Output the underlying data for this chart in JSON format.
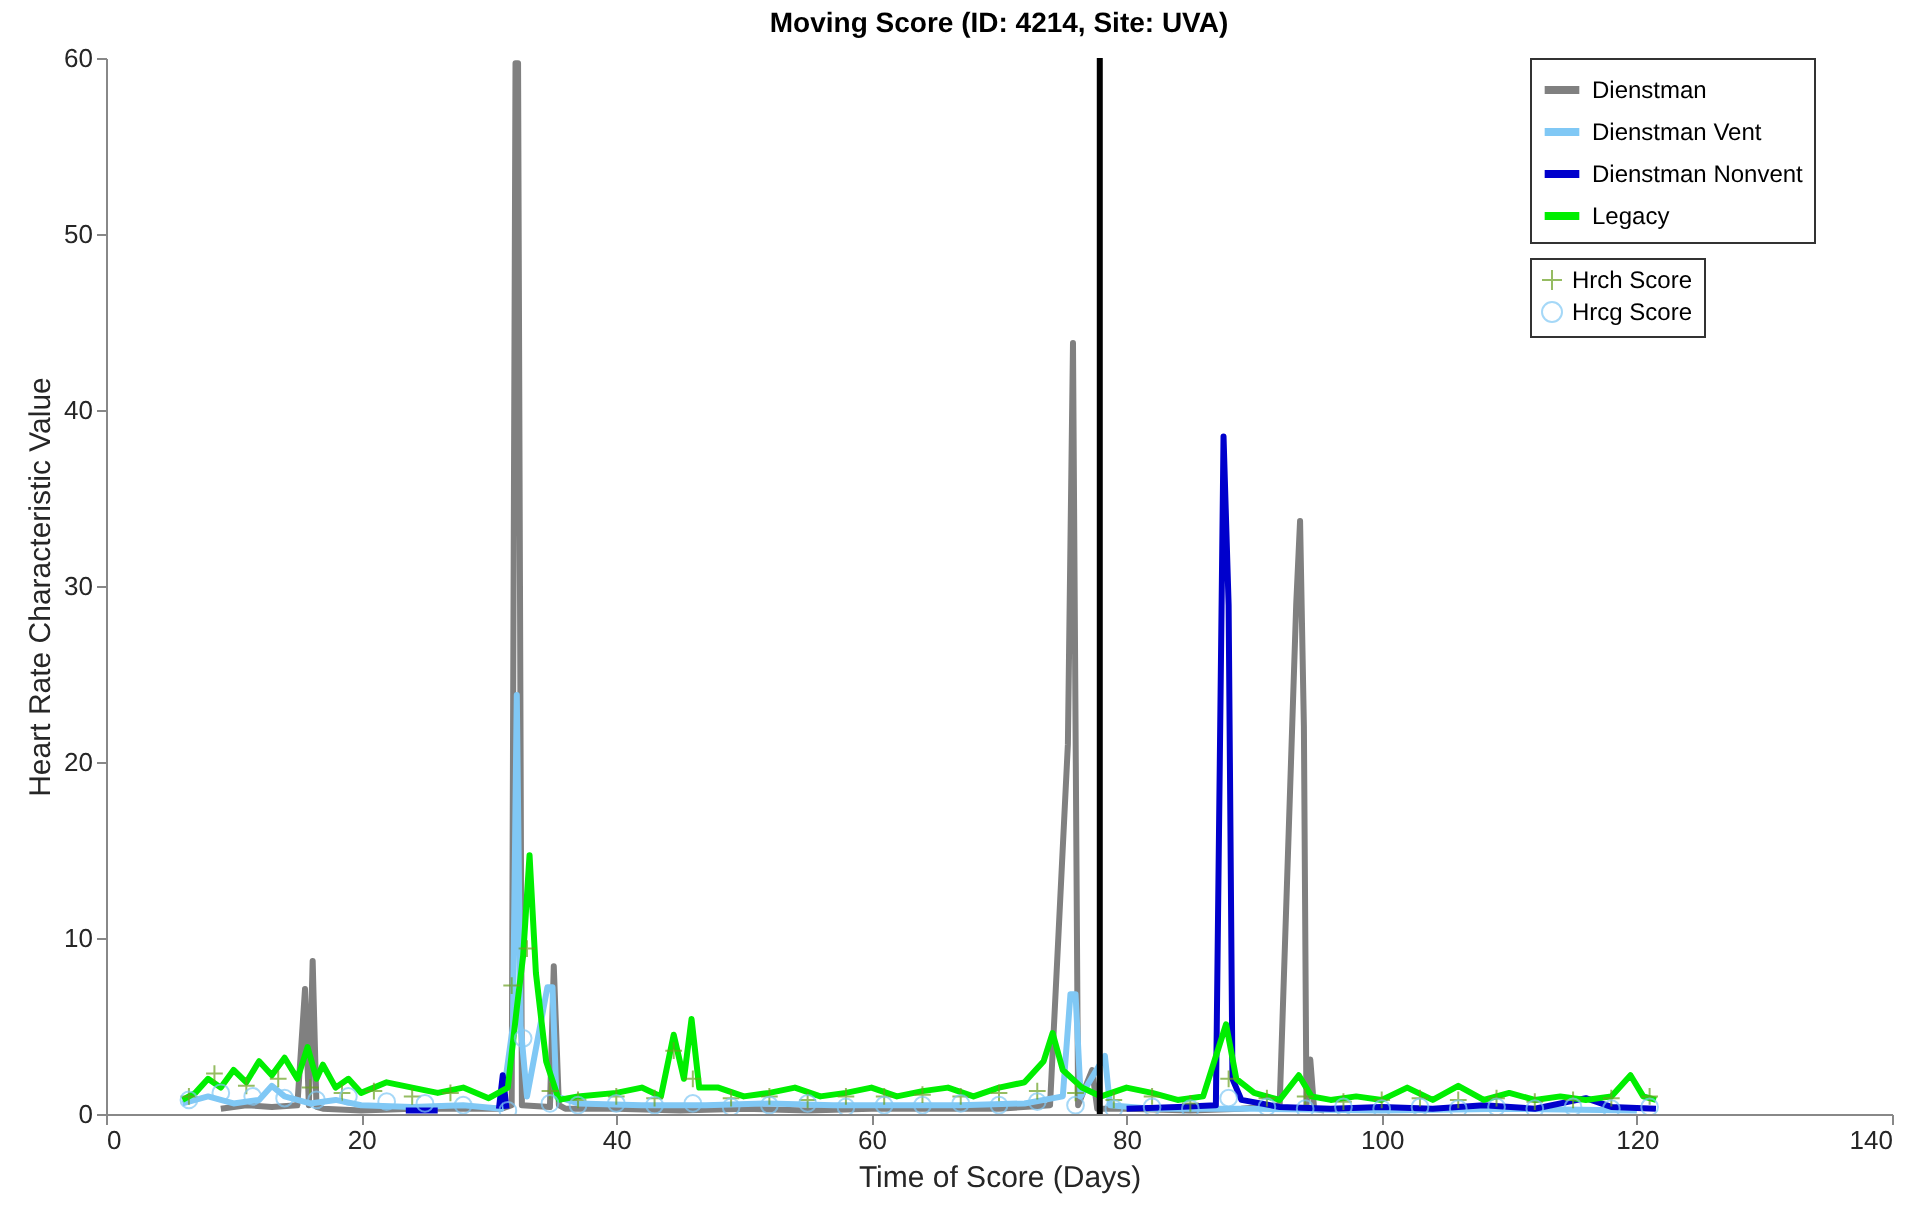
{
  "chart_data": {
    "type": "line",
    "title": "Moving Score (ID: 4214, Site: UVA)",
    "xlabel": "Time of Score (Days)",
    "ylabel": "Heart Rate Characteristic Value",
    "xlim": [
      0,
      140
    ],
    "xticks": [
      0,
      20,
      40,
      60,
      80,
      100,
      120,
      140
    ],
    "ylim": [
      0,
      60
    ],
    "yticks": [
      0,
      10,
      20,
      30,
      40,
      50,
      60
    ],
    "legend": "top right",
    "ref_lines": [
      {
        "axis": "x",
        "value": 77.9,
        "color": "#000000"
      }
    ],
    "series": [
      {
        "name": "Dienstman",
        "color": "#808080",
        "line_style": "solid",
        "x": [
          9,
          11,
          13,
          15,
          15.6,
          15.9,
          16.2,
          16.5,
          17,
          20,
          24,
          28,
          31,
          31.8,
          32.1,
          32.3,
          32.6,
          34.8,
          35.1,
          35.5,
          36,
          40,
          45,
          50,
          55,
          60,
          65,
          70,
          74,
          75.4,
          75.8,
          76.2,
          77.3,
          77.7,
          80,
          85,
          89,
          92,
          93.3,
          93.6,
          93.9,
          94.1,
          94.4,
          94.7,
          95.5
        ],
        "values": [
          0.3,
          0.5,
          0.4,
          0.5,
          7.1,
          0.5,
          8.7,
          0.4,
          0.3,
          0.2,
          0.3,
          0.3,
          0.3,
          0.5,
          59.7,
          59.7,
          0.5,
          0.4,
          8.4,
          0.5,
          0.3,
          0.3,
          0.2,
          0.3,
          0.2,
          0.3,
          0.3,
          0.3,
          0.5,
          21,
          43.8,
          0.5,
          2.5,
          0.3,
          0.3,
          0.2,
          0.3,
          0.5,
          29,
          33.7,
          22,
          0.5,
          3.1,
          0.3,
          0.2
        ]
      },
      {
        "name": "Dienstman Vent",
        "color": "#80c8f5",
        "line_style": "solid",
        "x": [
          6,
          8,
          10,
          12,
          13,
          14,
          16,
          18,
          20,
          24,
          28,
          31,
          31.9,
          32.2,
          32.5,
          33,
          34.6,
          35,
          35.3,
          37,
          42,
          47,
          52,
          57,
          62,
          67,
          72,
          75,
          75.6,
          76,
          76.4,
          78.3,
          78.7,
          82,
          90,
          100,
          110,
          120
        ],
        "values": [
          0.6,
          1,
          0.6,
          0.8,
          1.6,
          1,
          0.6,
          0.8,
          0.5,
          0.4,
          0.5,
          0.3,
          5,
          23.8,
          5,
          1,
          7.2,
          7.2,
          1,
          0.6,
          0.5,
          0.5,
          0.6,
          0.5,
          0.5,
          0.5,
          0.6,
          1,
          6.8,
          6.8,
          1,
          3.3,
          0.5,
          0.3,
          0.3,
          0.2,
          0.3,
          0.2
        ]
      },
      {
        "name": "Dienstman Nonvent",
        "color": "#0000cc",
        "line_style": "solid",
        "x": [
          23.5,
          26,
          26.1,
          30.8,
          31.1,
          31.4,
          31.6,
          80,
          84,
          87,
          87.6,
          88,
          88.3,
          89,
          92,
          96,
          100,
          104,
          108,
          112,
          116,
          118,
          121.5
        ],
        "values": [
          0.2,
          0.2,
          null,
          0.3,
          2.2,
          0.3,
          null,
          0.3,
          0.4,
          0.5,
          38.5,
          28.9,
          2,
          0.8,
          0.4,
          0.3,
          0.4,
          0.3,
          0.5,
          0.3,
          0.9,
          0.4,
          0.3
        ]
      },
      {
        "name": "Legacy",
        "color": "#00ee00",
        "line_style": "solid",
        "x": [
          6,
          7,
          8,
          9,
          10,
          11,
          12,
          13,
          14,
          15,
          15.8,
          16.5,
          17,
          18,
          19,
          20,
          22,
          24,
          26,
          28,
          30,
          31.5,
          32.2,
          32.7,
          33.2,
          33.7,
          34.5,
          35.5,
          37,
          40,
          42,
          43.5,
          44.5,
          45.3,
          45.9,
          46.5,
          48,
          50,
          52,
          54,
          56,
          58,
          60,
          62,
          64,
          66,
          68,
          70,
          72,
          73.5,
          74.2,
          75,
          76.5,
          78,
          80,
          82,
          84,
          86,
          87.8,
          88.6,
          90,
          92,
          93.5,
          94.5,
          96,
          98,
          100,
          102,
          104,
          106,
          108,
          110,
          112,
          114,
          116,
          118,
          119.5,
          120.5,
          121.5
        ],
        "values": [
          0.8,
          1.2,
          2,
          1.5,
          2.5,
          1.8,
          3,
          2.2,
          3.2,
          2,
          3.8,
          2,
          2.8,
          1.5,
          2,
          1.2,
          1.8,
          1.5,
          1.2,
          1.5,
          0.9,
          1.5,
          6,
          9,
          14.7,
          8,
          3,
          0.8,
          1,
          1.2,
          1.5,
          1,
          4.5,
          2,
          5.4,
          1.5,
          1.5,
          1,
          1.2,
          1.5,
          1,
          1.2,
          1.5,
          1,
          1.3,
          1.5,
          1,
          1.5,
          1.8,
          3,
          4.6,
          2.5,
          1.5,
          1,
          1.5,
          1.2,
          0.8,
          1,
          5.1,
          2,
          1.2,
          0.8,
          2.2,
          1,
          0.8,
          1,
          0.8,
          1.5,
          0.8,
          1.6,
          0.8,
          1.2,
          0.8,
          1,
          0.8,
          1,
          2.2,
          1,
          0.8
        ]
      },
      {
        "name": "Hrch Score",
        "type": "scatter",
        "color": "#6aa121",
        "marker": "cross",
        "x": [
          6.5,
          8.5,
          11,
          13.5,
          16,
          18.5,
          21,
          24,
          27,
          31.8,
          33,
          34.8,
          37,
          40,
          43,
          44.5,
          46,
          49,
          52,
          55,
          58,
          61,
          64,
          67,
          70,
          73,
          76,
          79,
          82,
          85,
          88,
          91,
          94,
          97,
          100,
          103,
          106,
          109,
          112,
          115,
          118,
          121
        ],
        "values": [
          1,
          2.3,
          1.6,
          2,
          1.5,
          1.2,
          1.3,
          1,
          1.2,
          7.3,
          9.4,
          1.3,
          0.8,
          1,
          0.9,
          3.6,
          2,
          0.9,
          1,
          0.8,
          1,
          1,
          1.1,
          1,
          1.2,
          1.3,
          1.2,
          0.8,
          1,
          0.6,
          2,
          0.9,
          1,
          0.7,
          0.8,
          0.9,
          0.8,
          0.9,
          0.7,
          0.8,
          0.9,
          1
        ]
      },
      {
        "name": "Hrcg Score",
        "type": "scatter",
        "color": "#80c8f5",
        "marker": "circle",
        "x": [
          6.5,
          9,
          11.5,
          14,
          16.5,
          19,
          22,
          25,
          28,
          31.5,
          32.7,
          34.8,
          37,
          40,
          43,
          46,
          49,
          52,
          55,
          58,
          61,
          64,
          67,
          70,
          73,
          76,
          79,
          82,
          85,
          88,
          91,
          94,
          97,
          100,
          103,
          106,
          109,
          112,
          115,
          118,
          121
        ],
        "values": [
          0.8,
          1.2,
          1,
          0.9,
          0.8,
          1,
          0.7,
          0.6,
          0.5,
          0.2,
          4.3,
          0.6,
          0.5,
          0.6,
          0.5,
          0.6,
          0.4,
          0.5,
          0.6,
          0.4,
          0.5,
          0.5,
          0.6,
          0.5,
          0.7,
          0.5,
          0.3,
          0.4,
          0.3,
          0.9,
          0.4,
          0.3,
          0.4,
          0.3,
          0.4,
          0.3,
          0.4,
          0.3,
          0.4,
          0.3,
          0.4
        ]
      }
    ]
  }
}
